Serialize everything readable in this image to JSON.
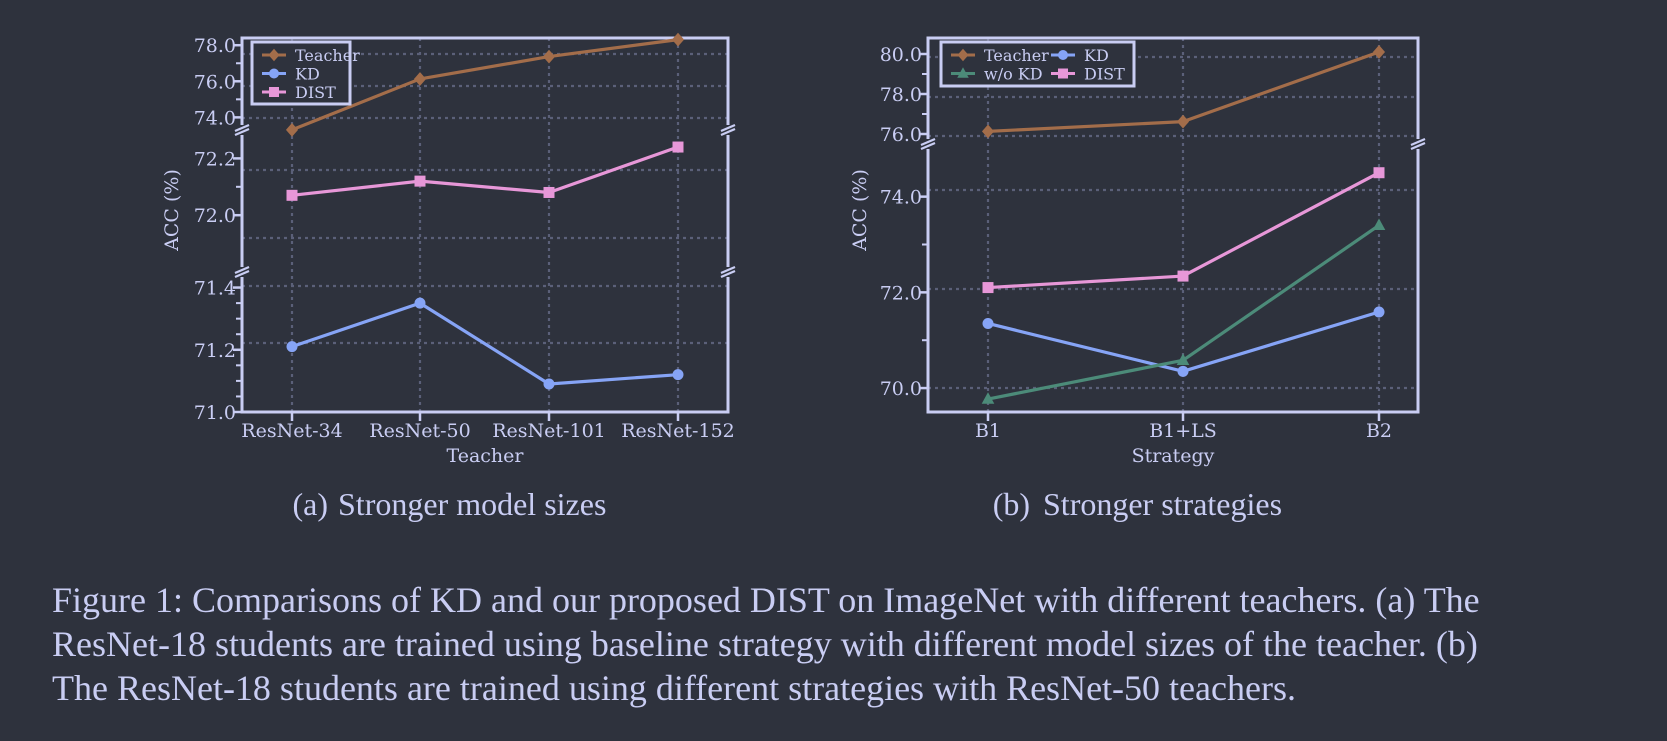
{
  "colors": {
    "background": "#2e323d",
    "foreground": "#c9cdf3",
    "grid": "#5b6079",
    "teacher": "#a36d4a",
    "kd": "#86a4f6",
    "dist": "#e797d8",
    "wokd": "#4c8b79"
  },
  "chart_data": [
    {
      "type": "line",
      "xlabel": "Teacher",
      "ylabel": "ACC (%)",
      "subcaption_label": "(a)",
      "subcaption": "Stronger model sizes",
      "categories": [
        "ResNet-34",
        "ResNet-50",
        "ResNet-101",
        "ResNet-152"
      ],
      "broken_axis": true,
      "legend_position": "top-left",
      "grid": true,
      "panels": [
        {
          "ylim": [
            73.3,
            78.4
          ],
          "ticks": [
            74.0,
            76.0,
            78.0
          ],
          "tick_labels": [
            "74.0",
            "76.0",
            "78.0"
          ],
          "minor_ticks": [
            75.0,
            77.0
          ]
        },
        {
          "ylim": [
            71.8,
            72.3
          ],
          "ticks": [
            72.0,
            72.2
          ],
          "tick_labels": [
            "72.0",
            "72.2"
          ],
          "minor_ticks": [
            72.1
          ]
        },
        {
          "ylim": [
            71.0,
            71.45
          ],
          "ticks": [
            71.0,
            71.2,
            71.4
          ],
          "tick_labels": [
            "71.0",
            "71.2",
            "71.4"
          ],
          "minor_ticks": [
            71.05,
            71.1,
            71.15,
            71.25,
            71.3,
            71.35
          ]
        }
      ],
      "series": [
        {
          "name": "Teacher",
          "marker": "diamond",
          "color_key": "teacher",
          "values": [
            73.31,
            76.13,
            77.37,
            78.31
          ]
        },
        {
          "name": "KD",
          "marker": "circle",
          "color_key": "kd",
          "values": [
            71.21,
            71.35,
            71.09,
            71.12
          ]
        },
        {
          "name": "DIST",
          "marker": "square",
          "color_key": "dist",
          "values": [
            72.07,
            72.12,
            72.08,
            72.24
          ]
        }
      ]
    },
    {
      "type": "line",
      "xlabel": "Strategy",
      "ylabel": "ACC (%)",
      "subcaption_label": "(b)",
      "subcaption": "Stronger strategies",
      "categories": [
        "B1",
        "B1+LS",
        "B2"
      ],
      "broken_axis": true,
      "legend_position": "top-left",
      "grid": true,
      "panels": [
        {
          "ylim": [
            75.5,
            80.8
          ],
          "ticks": [
            76.0,
            78.0,
            80.0
          ],
          "tick_labels": [
            "76.0",
            "78.0",
            "80.0"
          ],
          "minor_ticks": [
            77.0,
            79.0
          ]
        },
        {
          "ylim": [
            69.5,
            75.1
          ],
          "ticks": [
            70.0,
            72.0,
            74.0
          ],
          "tick_labels": [
            "70.0",
            "72.0",
            "74.0"
          ],
          "minor_ticks": [
            71.0,
            73.0
          ]
        }
      ],
      "series": [
        {
          "name": "Teacher",
          "marker": "diamond",
          "color_key": "teacher",
          "values": [
            76.13,
            76.62,
            80.1
          ]
        },
        {
          "name": "KD",
          "marker": "circle",
          "color_key": "kd",
          "values": [
            71.35,
            70.35,
            71.59
          ]
        },
        {
          "name": "w/o KD",
          "marker": "triangle",
          "color_key": "wokd",
          "values": [
            69.77,
            70.58,
            73.4
          ]
        },
        {
          "name": "DIST",
          "marker": "square",
          "color_key": "dist",
          "values": [
            72.1,
            72.34,
            74.5
          ]
        }
      ]
    }
  ],
  "caption": {
    "lines": [
      "Figure 1: Comparisons of KD and our proposed DIST on ImageNet with different teachers. (a) The",
      "ResNet-18 students are trained using baseline strategy with different model sizes of the teacher. (b)",
      "The ResNet-18 students are trained using different strategies with ResNet-50 teachers."
    ]
  }
}
